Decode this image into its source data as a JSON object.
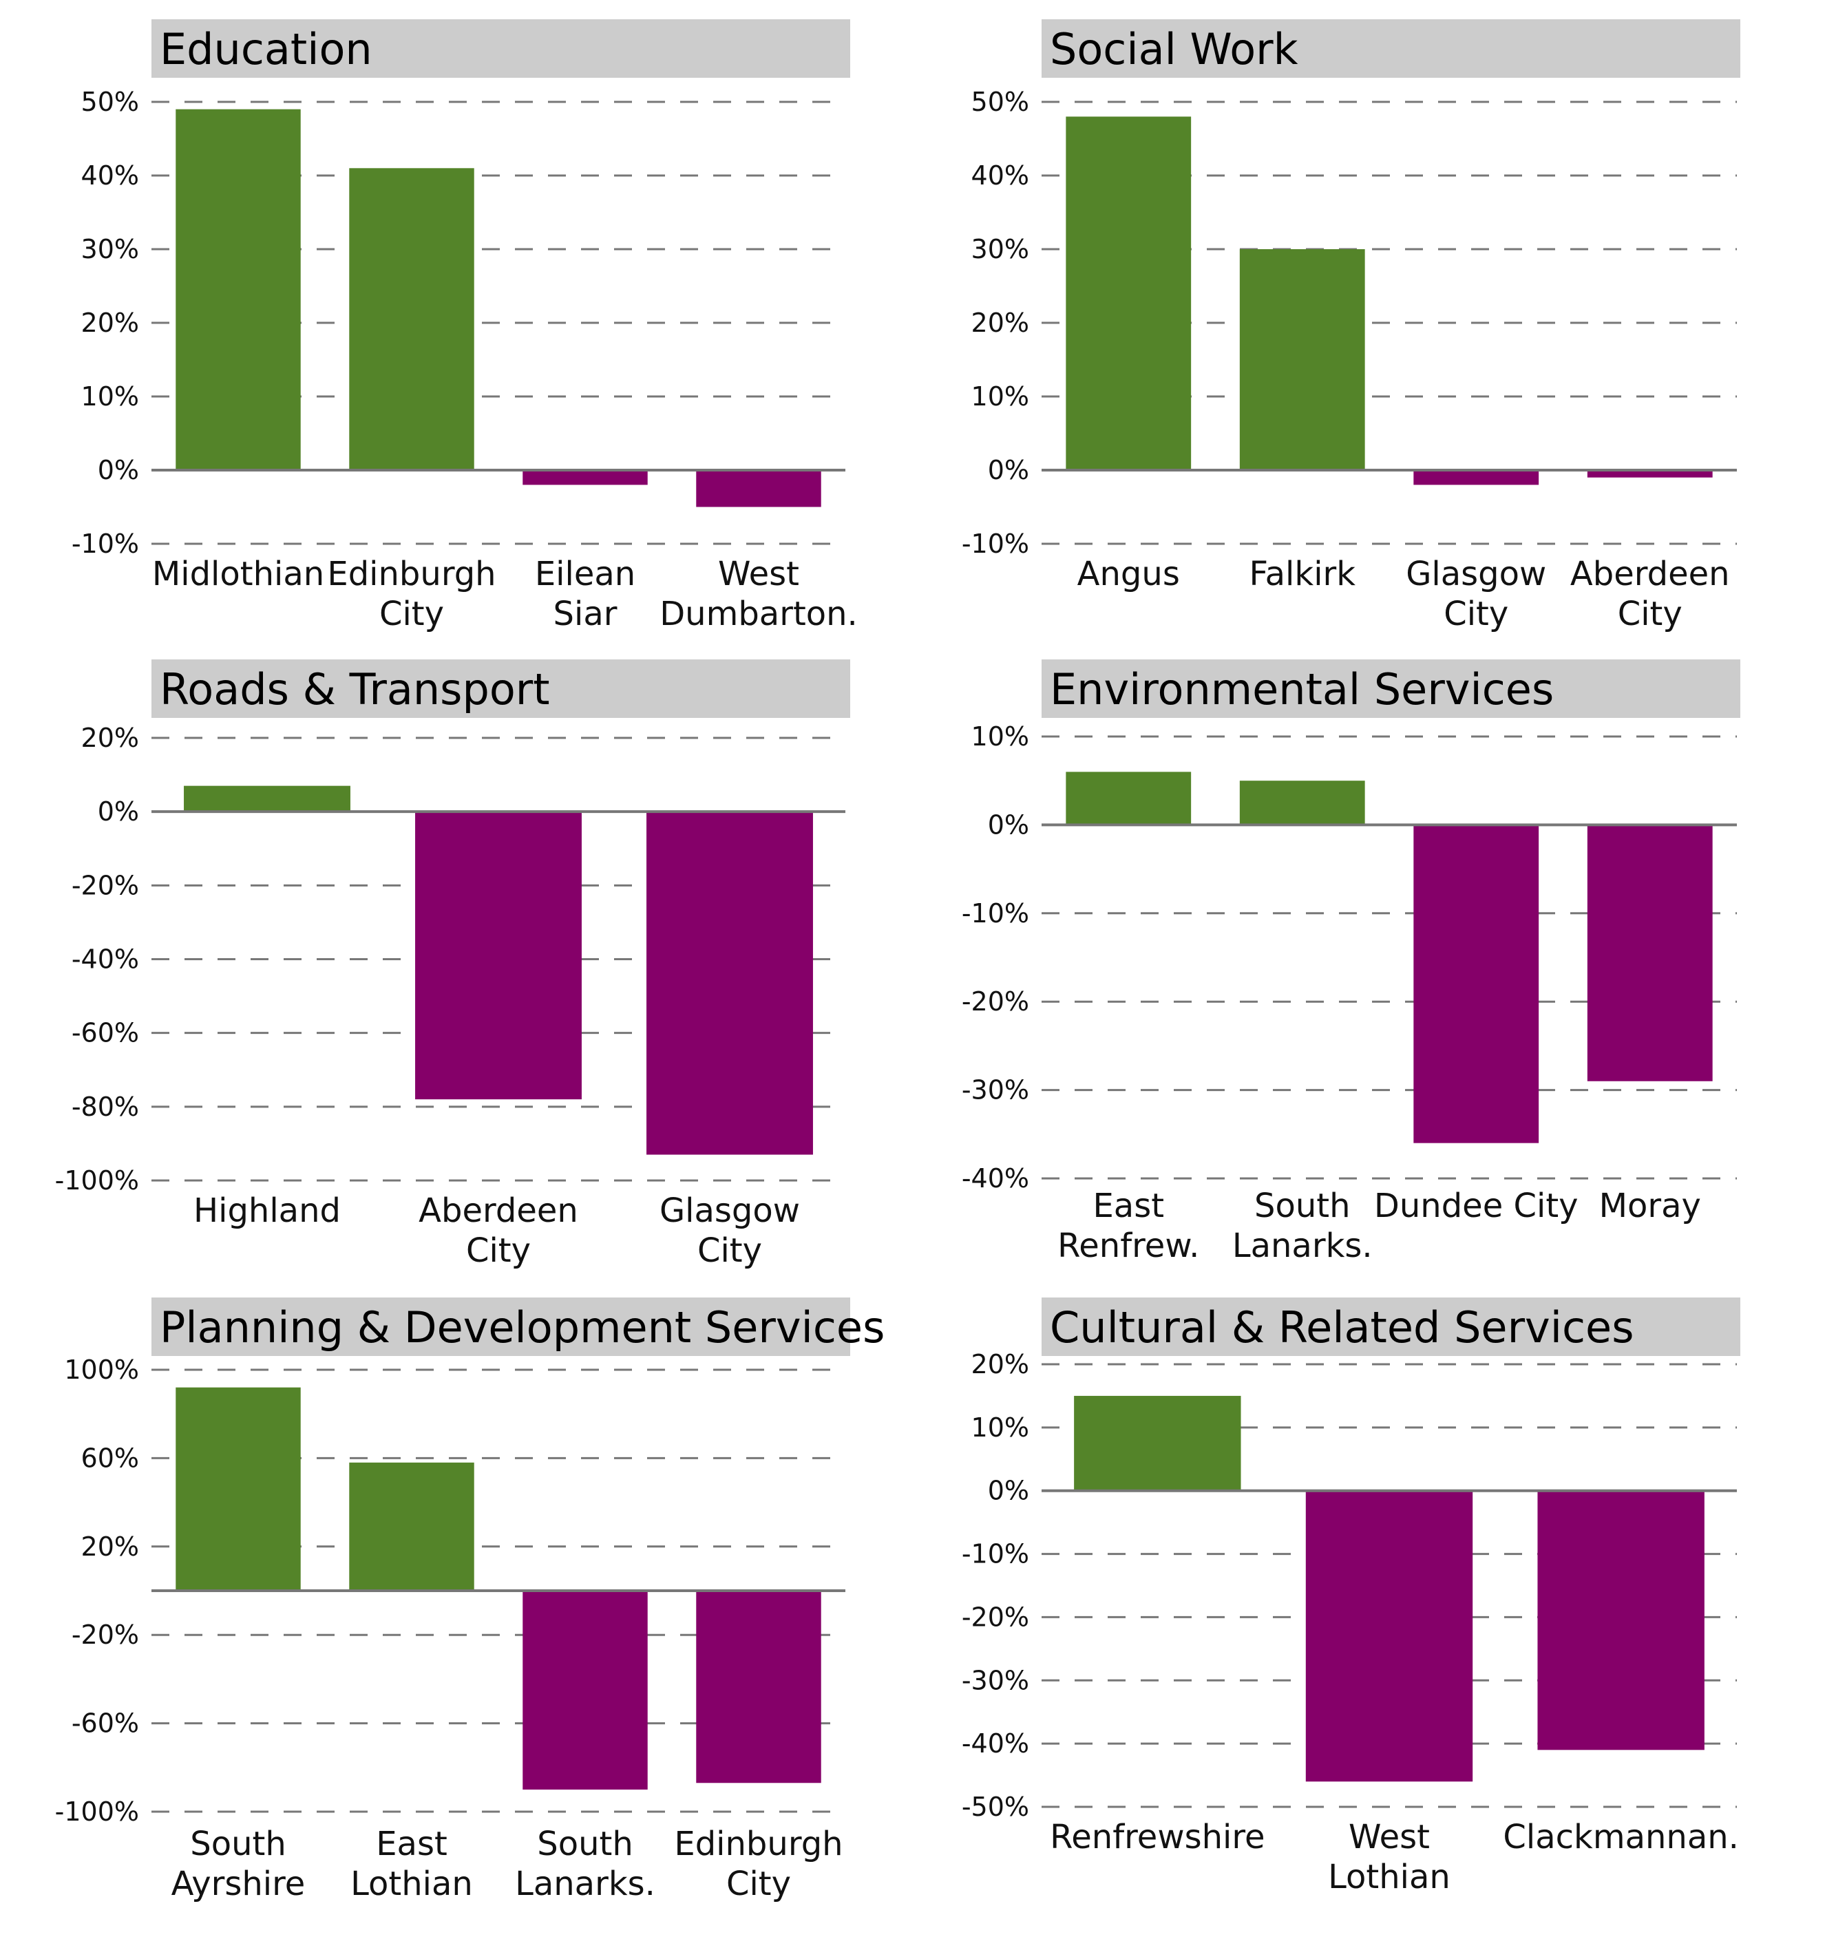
{
  "colors": {
    "positive": "#548429",
    "negative": "#850069",
    "title_bg": "#cccccc",
    "grid": "#777777",
    "axis": "#777777"
  },
  "chart_data": [
    {
      "type": "bar",
      "title": "Education",
      "categories": [
        [
          "Midlothian"
        ],
        [
          "Edinburgh",
          "City"
        ],
        [
          "Eilean",
          "Siar"
        ],
        [
          "West",
          "Dumbarton."
        ]
      ],
      "values": [
        49,
        41,
        -2,
        -5
      ],
      "ylim": [
        -10,
        50
      ],
      "ticks": [
        50,
        40,
        30,
        20,
        10,
        0,
        -10
      ],
      "tick_labels": [
        "50%",
        "40%",
        "30%",
        "20%",
        "10%",
        "0%",
        "-10%"
      ],
      "grid": true
    },
    {
      "type": "bar",
      "title": "Social Work",
      "categories": [
        [
          "Angus"
        ],
        [
          "Falkirk"
        ],
        [
          "Glasgow",
          "City"
        ],
        [
          "Aberdeen",
          "City"
        ]
      ],
      "values": [
        48,
        30,
        -2,
        -1
      ],
      "ylim": [
        -10,
        50
      ],
      "ticks": [
        50,
        40,
        30,
        20,
        10,
        0,
        -10
      ],
      "tick_labels": [
        "50%",
        "40%",
        "30%",
        "20%",
        "10%",
        "0%",
        "-10%"
      ],
      "grid": true
    },
    {
      "type": "bar",
      "title": "Roads & Transport",
      "categories": [
        [
          "Highland"
        ],
        [
          "Aberdeen",
          "City"
        ],
        [
          "Glasgow",
          "City"
        ]
      ],
      "values": [
        7,
        -78,
        -93
      ],
      "ylim": [
        -100,
        20
      ],
      "ticks": [
        20,
        0,
        -20,
        -40,
        -60,
        -80,
        -100
      ],
      "tick_labels": [
        "20%",
        "0%",
        "-20%",
        "-40%",
        "-60%",
        "-80%",
        "-100%"
      ],
      "grid": true
    },
    {
      "type": "bar",
      "title": "Environmental Services",
      "categories": [
        [
          "East",
          "Renfrew."
        ],
        [
          "South",
          "Lanarks."
        ],
        [
          "Dundee City"
        ],
        [
          "Moray"
        ]
      ],
      "values": [
        6,
        5,
        -36,
        -29
      ],
      "ylim": [
        -40,
        10
      ],
      "ticks": [
        10,
        0,
        -10,
        -20,
        -30,
        -40
      ],
      "tick_labels": [
        "10%",
        "0%",
        "-10%",
        "-20%",
        "-30%",
        "-40%"
      ],
      "grid": true
    },
    {
      "type": "bar",
      "title": "Planning & Development Services",
      "categories": [
        [
          "South",
          "Ayrshire"
        ],
        [
          "East",
          "Lothian"
        ],
        [
          "South",
          "Lanarks."
        ],
        [
          "Edinburgh",
          "City"
        ]
      ],
      "values": [
        92,
        58,
        -90,
        -87
      ],
      "ylim": [
        -100,
        100
      ],
      "ticks": [
        100,
        60,
        20,
        -20,
        -60,
        -100
      ],
      "tick_labels": [
        "100%",
        "60%",
        "20%",
        "-20%",
        "-60%",
        "-100%"
      ],
      "grid": true
    },
    {
      "type": "bar",
      "title": "Cultural & Related Services",
      "categories": [
        [
          "Renfrewshire"
        ],
        [
          "West",
          "Lothian"
        ],
        [
          "Clackmannan."
        ]
      ],
      "values": [
        15,
        -46,
        -41
      ],
      "ylim": [
        -50,
        20
      ],
      "ticks": [
        20,
        10,
        0,
        -10,
        -20,
        -30,
        -40,
        -50
      ],
      "tick_labels": [
        "20%",
        "10%",
        "0%",
        "-10%",
        "-20%",
        "-30%",
        "-40%",
        "-50%"
      ],
      "grid": true
    }
  ]
}
